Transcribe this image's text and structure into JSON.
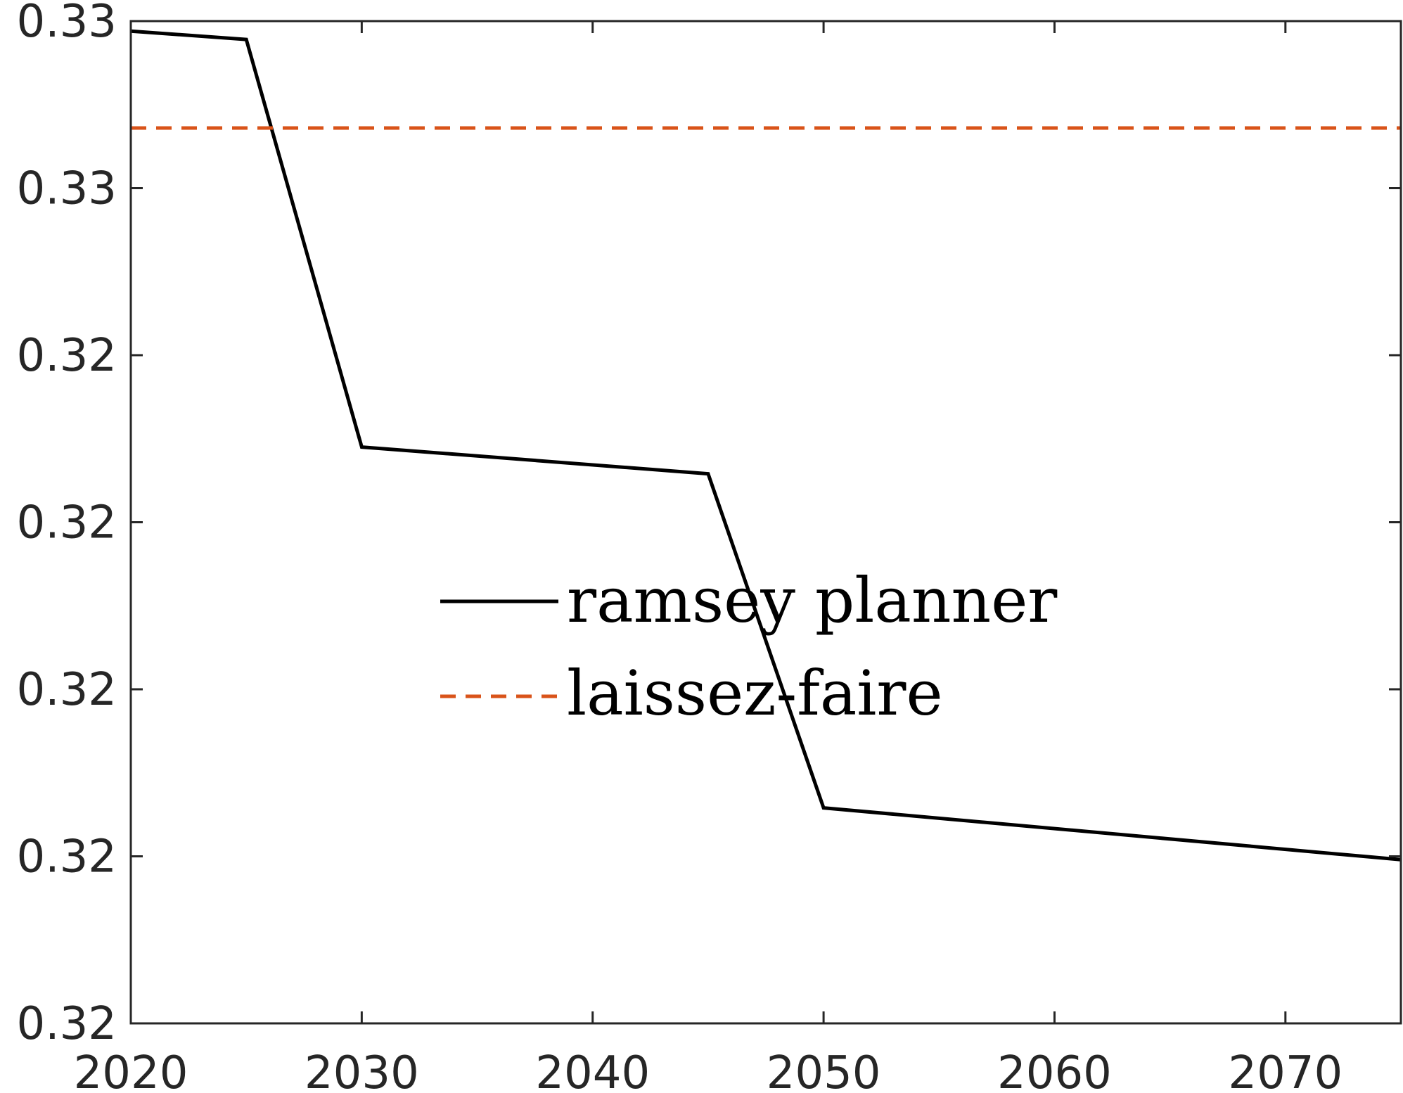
{
  "chart_data": {
    "type": "line",
    "title": "",
    "xlabel": "",
    "ylabel": "",
    "xlim": [
      2020,
      2075
    ],
    "ylim": [
      0,
      6
    ],
    "x_ticks": [
      2020,
      2030,
      2040,
      2050,
      2060,
      2070
    ],
    "x_tick_labels": [
      "2020",
      "2030",
      "2040",
      "2050",
      "2060",
      "2070"
    ],
    "y_ticks": [
      0,
      1,
      2,
      3,
      4,
      5,
      6
    ],
    "y_tick_labels": [
      "0.32",
      "0.32",
      "0.32",
      "0.32",
      "0.32",
      "0.33",
      "0.33"
    ],
    "grid": false,
    "legend_position": "center",
    "series": [
      {
        "name": "ramsey planner",
        "color": "#000000",
        "line_style": "solid",
        "x": [
          2020,
          2025,
          2030,
          2045,
          2050,
          2075
        ],
        "y": [
          5.94,
          5.89,
          3.45,
          3.29,
          1.29,
          0.98
        ]
      },
      {
        "name": "laissez-faire",
        "color": "#D95319",
        "line_style": "dashed",
        "x": [
          2020,
          2075
        ],
        "y": [
          5.36,
          5.36
        ]
      }
    ]
  }
}
